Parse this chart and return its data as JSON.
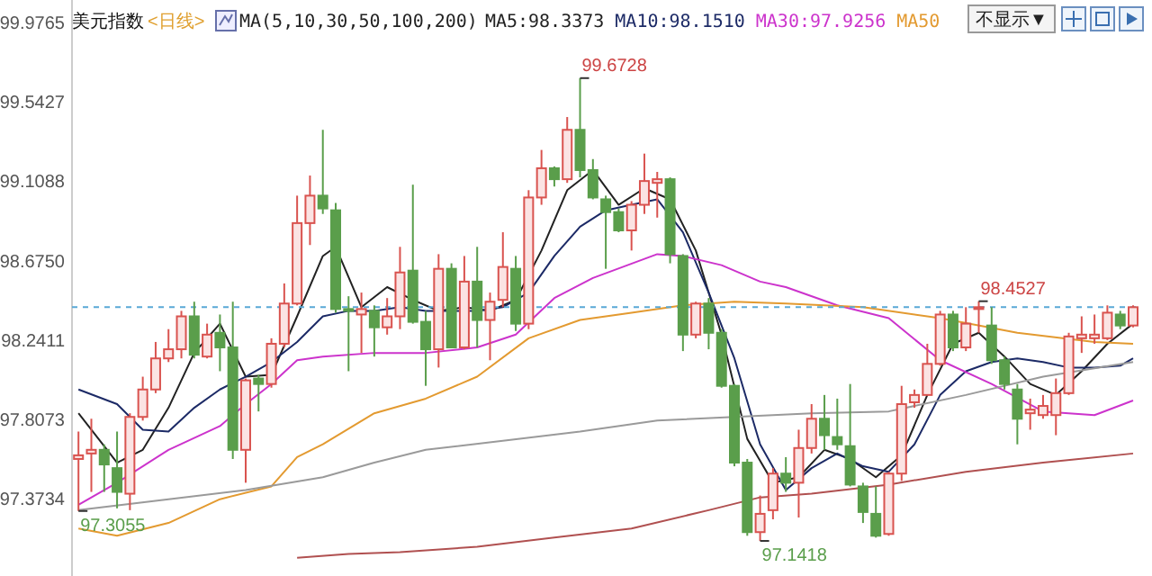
{
  "chart_data": {
    "type": "candlestick",
    "title": "美元指数",
    "subtitle": "<日线>",
    "legend_title": "MA(5,10,30,50,100,200)",
    "legend": "top",
    "tick_labels": "y",
    "categories": [
      null,
      null,
      null,
      null,
      null,
      null,
      null,
      null,
      null,
      null,
      null,
      null,
      null,
      null,
      null,
      null,
      null,
      null,
      null,
      null,
      null,
      null,
      null,
      null,
      null,
      null,
      null,
      null,
      null,
      null,
      null,
      null,
      null,
      null,
      null,
      null,
      null,
      null,
      null,
      null,
      null,
      null,
      null,
      null,
      null,
      null,
      null,
      null,
      null,
      null,
      null,
      null,
      null,
      null,
      null,
      null,
      null,
      null,
      null,
      null,
      null,
      null,
      null,
      null,
      null,
      null,
      null,
      null,
      null,
      null,
      null,
      null,
      null,
      null,
      null,
      null,
      null,
      null,
      null,
      null,
      null,
      null,
      null
    ],
    "ylim": [
      96.95,
      100.1
    ],
    "yticks": [
      97.3734,
      97.8073,
      98.2411,
      {
        "value": 98.675,
        "label": "98.6750"
      },
      99.1088,
      99.5427,
      99.9765
    ],
    "ohlc": [
      [
        97.59,
        97.74,
        97.3055,
        97.61
      ],
      [
        97.62,
        97.81,
        97.41,
        97.64
      ],
      [
        97.64,
        97.67,
        97.41,
        97.56
      ],
      [
        97.54,
        97.74,
        97.32,
        97.41
      ],
      [
        97.4,
        97.84,
        97.31,
        97.82
      ],
      [
        97.82,
        98.04,
        97.8,
        97.97
      ],
      [
        97.97,
        98.23,
        97.95,
        98.14
      ],
      [
        98.14,
        98.3,
        98.12,
        98.19
      ],
      [
        98.19,
        98.4,
        98.14,
        98.37
      ],
      [
        98.37,
        98.45,
        98.14,
        98.16
      ],
      [
        98.15,
        98.33,
        98.14,
        98.27
      ],
      [
        98.28,
        98.38,
        98.07,
        98.2
      ],
      [
        98.2,
        98.45,
        97.59,
        97.64
      ],
      [
        97.64,
        98.03,
        97.46,
        98.02
      ],
      [
        98.03,
        98.05,
        97.85,
        98.0
      ],
      [
        98.0,
        98.25,
        97.98,
        98.22
      ],
      [
        98.22,
        98.55,
        98.2,
        98.44
      ],
      [
        98.44,
        99.03,
        98.43,
        98.88
      ],
      [
        98.88,
        99.14,
        98.76,
        99.03
      ],
      [
        99.03,
        99.39,
        98.93,
        98.96
      ],
      [
        98.95,
        98.99,
        98.39,
        98.41
      ],
      [
        98.41,
        98.48,
        98.07,
        98.4
      ],
      [
        98.38,
        98.5,
        98.17,
        98.41
      ],
      [
        98.4,
        98.43,
        98.15,
        98.31
      ],
      [
        98.31,
        98.47,
        98.27,
        98.37
      ],
      [
        98.37,
        98.75,
        98.3,
        98.61
      ],
      [
        98.62,
        99.09,
        98.33,
        98.34
      ],
      [
        98.34,
        98.4,
        97.99,
        98.19
      ],
      [
        98.19,
        98.71,
        98.09,
        98.63
      ],
      [
        98.63,
        98.66,
        98.2,
        98.2
      ],
      [
        98.2,
        98.7,
        98.19,
        98.56
      ],
      [
        98.56,
        98.75,
        98.2,
        98.35
      ],
      [
        98.35,
        98.5,
        98.13,
        98.45
      ],
      [
        98.46,
        98.83,
        98.42,
        98.64
      ],
      [
        98.63,
        98.7,
        98.29,
        98.33
      ],
      [
        98.33,
        99.06,
        98.3,
        99.02
      ],
      [
        99.02,
        99.28,
        98.98,
        99.18
      ],
      [
        99.18,
        99.19,
        99.08,
        99.12
      ],
      [
        99.12,
        99.46,
        99.1,
        99.39
      ],
      [
        99.39,
        99.6728,
        99.13,
        99.17
      ],
      [
        99.17,
        99.23,
        99.01,
        99.02
      ],
      [
        99.01,
        99.03,
        98.63,
        98.94
      ],
      [
        98.94,
        98.96,
        98.83,
        98.84
      ],
      [
        98.84,
        99.0,
        98.73,
        98.98
      ],
      [
        98.98,
        99.26,
        98.93,
        99.11
      ],
      [
        99.1,
        99.16,
        98.91,
        99.12
      ],
      [
        99.12,
        99.13,
        98.66,
        98.71
      ],
      [
        98.7,
        98.71,
        98.18,
        98.27
      ],
      [
        98.27,
        98.45,
        98.25,
        98.44
      ],
      [
        98.44,
        98.47,
        98.19,
        98.28
      ],
      [
        98.28,
        98.3,
        97.98,
        97.99
      ],
      [
        97.99,
        98.0,
        97.55,
        97.57
      ],
      [
        97.57,
        97.59,
        97.17,
        97.19
      ],
      [
        97.19,
        97.39,
        97.1418,
        97.29
      ],
      [
        97.31,
        97.54,
        97.26,
        97.51
      ],
      [
        97.51,
        97.6,
        97.41,
        97.46
      ],
      [
        97.46,
        97.75,
        97.27,
        97.65
      ],
      [
        97.65,
        97.89,
        97.62,
        97.81
      ],
      [
        97.81,
        97.94,
        97.64,
        97.72
      ],
      [
        97.71,
        97.92,
        97.64,
        97.67
      ],
      [
        97.66,
        98.0,
        97.44,
        97.45
      ],
      [
        97.44,
        97.46,
        97.24,
        97.3
      ],
      [
        97.29,
        97.44,
        97.16,
        97.17
      ],
      [
        97.18,
        97.52,
        97.17,
        97.51
      ],
      [
        97.51,
        97.99,
        97.47,
        97.89
      ],
      [
        97.9,
        97.97,
        97.87,
        97.94
      ],
      [
        97.94,
        98.22,
        97.94,
        98.11
      ],
      [
        98.11,
        98.4,
        98.1,
        98.38
      ],
      [
        98.38,
        98.4,
        98.18,
        98.2
      ],
      [
        98.2,
        98.42,
        98.18,
        98.33
      ],
      [
        98.41,
        98.4527,
        98.28,
        98.42
      ],
      [
        98.32,
        98.42,
        98.11,
        98.13
      ],
      [
        98.13,
        98.15,
        97.97,
        98.0
      ],
      [
        97.97,
        98.0,
        97.67,
        97.81
      ],
      [
        97.84,
        97.92,
        97.75,
        97.86
      ],
      [
        97.83,
        97.94,
        97.81,
        97.88
      ],
      [
        97.83,
        98.03,
        97.72,
        97.95
      ],
      [
        97.95,
        98.28,
        97.94,
        98.26
      ],
      [
        98.25,
        98.37,
        98.17,
        98.27
      ],
      [
        98.25,
        98.38,
        98.22,
        98.27
      ],
      [
        98.25,
        98.43,
        98.24,
        98.39
      ],
      [
        98.38,
        98.4,
        98.3,
        98.32
      ],
      [
        98.32,
        98.43,
        98.31,
        98.42
      ]
    ],
    "series": [
      {
        "type": "line",
        "name": "MA5:98.3373",
        "color": "#222222",
        "values": [
          97.84,
          null,
          null,
          97.57,
          null,
          97.64,
          null,
          97.87,
          null,
          98.17,
          null,
          98.33,
          null,
          98.04,
          null,
          98.05,
          null,
          98.37,
          null,
          98.7,
          98.75,
          null,
          98.42,
          null,
          98.53,
          null,
          98.46,
          null,
          98.4,
          null,
          98.42,
          null,
          98.4,
          null,
          98.46,
          null,
          98.73,
          null,
          99.06,
          null,
          99.17,
          null,
          98.98,
          null,
          99.07,
          null,
          99.01,
          null,
          98.73,
          null,
          98.27,
          null,
          97.7,
          null,
          97.46,
          null,
          97.49,
          null,
          97.64,
          null,
          97.59,
          null,
          97.49,
          null,
          97.61,
          null,
          97.94,
          null,
          98.22,
          null,
          98.28,
          null,
          98.15,
          null,
          98.0,
          null,
          97.94,
          null,
          98.07,
          null,
          98.22,
          null,
          98.33
        ]
      },
      {
        "type": "line",
        "name": "MA10:98.1510",
        "color": "#1c2a66",
        "values": [
          97.97,
          null,
          null,
          97.89,
          null,
          97.75,
          null,
          97.74,
          null,
          97.87,
          null,
          97.97,
          null,
          98.04,
          null,
          98.12,
          null,
          98.23,
          null,
          98.37,
          null,
          98.4,
          null,
          98.4,
          null,
          98.42,
          null,
          98.4,
          null,
          98.4,
          null,
          98.4,
          null,
          98.42,
          null,
          98.5,
          null,
          98.7,
          null,
          98.86,
          null,
          98.95,
          null,
          98.98,
          null,
          99.01,
          null,
          98.83,
          null,
          98.5,
          null,
          98.14,
          null,
          97.67,
          null,
          97.42,
          null,
          97.54,
          null,
          97.62,
          null,
          97.55,
          null,
          97.52,
          null,
          97.67,
          null,
          97.94,
          null,
          98.07,
          null,
          98.12,
          null,
          98.14,
          null,
          98.12,
          null,
          98.09,
          null,
          98.09,
          null,
          98.1,
          98.14
        ]
      },
      {
        "type": "line",
        "name": "MA30:97.9256",
        "color": "#cc33cc",
        "values": [
          97.34,
          null,
          null,
          97.46,
          null,
          null,
          null,
          97.64,
          null,
          null,
          null,
          97.77,
          null,
          97.89,
          null,
          98.0,
          null,
          98.13,
          null,
          98.15,
          null,
          null,
          null,
          98.17,
          null,
          null,
          null,
          98.17,
          null,
          null,
          null,
          98.2,
          null,
          null,
          98.27,
          null,
          null,
          98.47,
          null,
          null,
          98.58,
          null,
          null,
          null,
          null,
          98.71,
          null,
          98.7,
          null,
          null,
          98.65,
          null,
          null,
          98.56,
          null,
          98.53,
          null,
          null,
          null,
          98.43,
          null,
          null,
          null,
          98.36,
          null,
          null,
          null,
          98.13,
          null,
          null,
          null,
          98.0,
          null,
          null,
          null,
          97.85,
          null,
          null,
          null,
          97.83,
          null,
          null,
          97.91
        ]
      },
      {
        "type": "line",
        "name": "MA50",
        "color": "#e39a30",
        "values": [
          97.21,
          null,
          null,
          97.17,
          null,
          null,
          null,
          97.24,
          null,
          null,
          null,
          97.37,
          null,
          null,
          null,
          97.44,
          null,
          97.6,
          null,
          97.67,
          null,
          null,
          null,
          97.84,
          null,
          null,
          null,
          97.92,
          null,
          null,
          null,
          98.04,
          null,
          null,
          null,
          98.25,
          null,
          null,
          null,
          98.35,
          null,
          null,
          null,
          98.39,
          null,
          null,
          null,
          98.43,
          null,
          null,
          null,
          98.45,
          null,
          null,
          null,
          98.44,
          null,
          null,
          null,
          null,
          null,
          98.42,
          null,
          null,
          null,
          null,
          null,
          98.36,
          null,
          null,
          null,
          null,
          null,
          98.28,
          null,
          null,
          null,
          null,
          null,
          98.23,
          null,
          null,
          98.22
        ]
      },
      {
        "type": "line",
        "color": "#9a9a9a",
        "values": [
          97.31,
          null,
          null,
          null,
          null,
          null,
          null,
          97.37,
          null,
          null,
          null,
          null,
          null,
          97.42,
          null,
          null,
          null,
          null,
          null,
          97.49,
          null,
          null,
          null,
          97.57,
          null,
          null,
          null,
          97.64,
          null,
          null,
          null,
          null,
          null,
          97.69,
          null,
          null,
          null,
          null,
          null,
          97.74,
          null,
          null,
          null,
          null,
          null,
          97.8,
          null,
          null,
          null,
          null,
          null,
          97.82,
          null,
          null,
          null,
          null,
          null,
          97.84,
          null,
          null,
          null,
          null,
          null,
          97.85,
          null,
          null,
          null,
          null,
          null,
          97.94,
          null,
          null,
          null,
          null,
          null,
          98.04,
          null,
          null,
          null,
          null,
          null,
          null,
          98.12
        ]
      },
      {
        "type": "line",
        "color": "#b05050",
        "values": [
          null,
          null,
          null,
          null,
          null,
          null,
          null,
          null,
          null,
          null,
          null,
          null,
          null,
          null,
          null,
          null,
          null,
          97.05,
          null,
          null,
          null,
          97.07,
          null,
          null,
          null,
          97.08,
          null,
          null,
          null,
          null,
          null,
          97.11,
          null,
          null,
          null,
          null,
          null,
          97.16,
          null,
          null,
          null,
          null,
          null,
          97.21,
          null,
          null,
          null,
          null,
          null,
          97.31,
          null,
          null,
          null,
          97.38,
          null,
          null,
          null,
          97.4,
          null,
          null,
          null,
          null,
          null,
          97.45,
          null,
          null,
          null,
          null,
          null,
          97.52,
          null,
          null,
          null,
          null,
          null,
          97.57,
          null,
          null,
          null,
          null,
          null,
          null,
          97.62
        ]
      }
    ],
    "ref_lines": [
      {
        "axis": "y",
        "value": 98.42,
        "color": "#5aa9d6",
        "line_style": "dashed"
      }
    ],
    "annotations": [
      "99.6728",
      {
        "text": "98.4527",
        "y": 98.4527
      },
      "97.1418",
      {
        "text": "97.3055",
        "y": 97.3055
      },
      "不显示▼"
    ]
  }
}
